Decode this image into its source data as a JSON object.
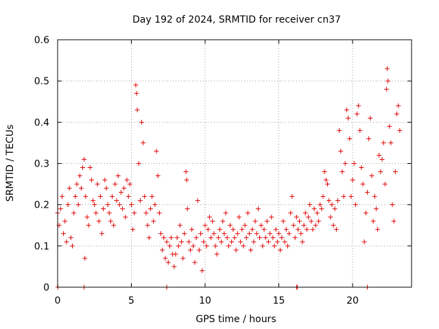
{
  "chart_data": {
    "type": "scatter",
    "title": "Day 192 of 2024, SRMTID for receiver cn37",
    "xlabel": "GPS time / hours",
    "ylabel": "SRMTID / TECUs",
    "xlim": [
      0,
      24
    ],
    "ylim": [
      0,
      0.6
    ],
    "xticks": [
      0,
      5,
      10,
      15,
      20
    ],
    "yticks": [
      0,
      0.1,
      0.2,
      0.3,
      0.4,
      0.5,
      0.6
    ],
    "xtick_labels": [
      "0",
      "5",
      "10",
      "15",
      "20"
    ],
    "ytick_labels": [
      "0",
      "0.1",
      "0.2",
      "0.3",
      "0.4",
      "0.5",
      "0.6"
    ],
    "grid": true,
    "marker": "+",
    "series": [
      {
        "name": "cn37",
        "color": "#e00000",
        "points": [
          [
            0.0,
            0.18
          ],
          [
            0.1,
            0.15
          ],
          [
            0.2,
            0.19
          ],
          [
            0.3,
            0.22
          ],
          [
            0.4,
            0.13
          ],
          [
            0.5,
            0.16
          ],
          [
            0.6,
            0.11
          ],
          [
            0.7,
            0.2
          ],
          [
            0.8,
            0.24
          ],
          [
            0.9,
            0.12
          ],
          [
            1.0,
            0.1
          ],
          [
            1.1,
            0.18
          ],
          [
            1.2,
            0.22
          ],
          [
            1.3,
            0.25
          ],
          [
            1.4,
            0.2
          ],
          [
            1.5,
            0.27
          ],
          [
            1.6,
            0.24
          ],
          [
            1.7,
            0.29
          ],
          [
            1.8,
            0.31
          ],
          [
            1.85,
            0.07
          ],
          [
            1.9,
            0.22
          ],
          [
            2.0,
            0.17
          ],
          [
            2.1,
            0.15
          ],
          [
            2.2,
            0.29
          ],
          [
            2.3,
            0.26
          ],
          [
            2.4,
            0.21
          ],
          [
            2.5,
            0.2
          ],
          [
            2.6,
            0.18
          ],
          [
            2.7,
            0.25
          ],
          [
            2.8,
            0.16
          ],
          [
            2.9,
            0.22
          ],
          [
            3.0,
            0.13
          ],
          [
            3.1,
            0.19
          ],
          [
            3.2,
            0.26
          ],
          [
            3.3,
            0.24
          ],
          [
            3.4,
            0.2
          ],
          [
            3.5,
            0.18
          ],
          [
            3.6,
            0.16
          ],
          [
            3.7,
            0.22
          ],
          [
            3.8,
            0.15
          ],
          [
            3.9,
            0.25
          ],
          [
            4.0,
            0.21
          ],
          [
            4.1,
            0.27
          ],
          [
            4.2,
            0.2
          ],
          [
            4.3,
            0.23
          ],
          [
            4.4,
            0.19
          ],
          [
            4.5,
            0.24
          ],
          [
            4.6,
            0.17
          ],
          [
            4.7,
            0.26
          ],
          [
            4.8,
            0.22
          ],
          [
            4.9,
            0.25
          ],
          [
            5.0,
            0.2
          ],
          [
            5.1,
            0.14
          ],
          [
            5.2,
            0.18
          ],
          [
            5.3,
            0.49
          ],
          [
            5.35,
            0.47
          ],
          [
            5.4,
            0.43
          ],
          [
            5.5,
            0.3
          ],
          [
            5.6,
            0.21
          ],
          [
            5.7,
            0.4
          ],
          [
            5.8,
            0.35
          ],
          [
            5.9,
            0.22
          ],
          [
            6.0,
            0.18
          ],
          [
            6.1,
            0.15
          ],
          [
            6.2,
            0.12
          ],
          [
            6.3,
            0.19
          ],
          [
            6.4,
            0.22
          ],
          [
            6.5,
            0.16
          ],
          [
            6.6,
            0.2
          ],
          [
            6.7,
            0.33
          ],
          [
            6.8,
            0.27
          ],
          [
            6.9,
            0.18
          ],
          [
            7.0,
            0.13
          ],
          [
            7.1,
            0.09
          ],
          [
            7.2,
            0.12
          ],
          [
            7.3,
            0.07
          ],
          [
            7.4,
            0.11
          ],
          [
            7.5,
            0.06
          ],
          [
            7.6,
            0.1
          ],
          [
            7.7,
            0.12
          ],
          [
            7.8,
            0.08
          ],
          [
            7.9,
            0.05
          ],
          [
            8.0,
            0.08
          ],
          [
            8.1,
            0.12
          ],
          [
            8.2,
            0.1
          ],
          [
            8.3,
            0.15
          ],
          [
            8.4,
            0.11
          ],
          [
            8.5,
            0.07
          ],
          [
            8.6,
            0.13
          ],
          [
            8.7,
            0.28
          ],
          [
            8.75,
            0.26
          ],
          [
            8.8,
            0.19
          ],
          [
            8.9,
            0.11
          ],
          [
            9.0,
            0.09
          ],
          [
            9.1,
            0.14
          ],
          [
            9.2,
            0.1
          ],
          [
            9.3,
            0.06
          ],
          [
            9.4,
            0.12
          ],
          [
            9.5,
            0.21
          ],
          [
            9.6,
            0.09
          ],
          [
            9.7,
            0.13
          ],
          [
            9.8,
            0.04
          ],
          [
            9.9,
            0.11
          ],
          [
            10.0,
            0.15
          ],
          [
            10.1,
            0.1
          ],
          [
            10.2,
            0.14
          ],
          [
            10.3,
            0.17
          ],
          [
            10.4,
            0.12
          ],
          [
            10.5,
            0.16
          ],
          [
            10.6,
            0.13
          ],
          [
            10.7,
            0.1
          ],
          [
            10.8,
            0.08
          ],
          [
            10.9,
            0.12
          ],
          [
            11.0,
            0.14
          ],
          [
            11.1,
            0.11
          ],
          [
            11.2,
            0.16
          ],
          [
            11.3,
            0.13
          ],
          [
            11.4,
            0.18
          ],
          [
            11.5,
            0.12
          ],
          [
            11.6,
            0.1
          ],
          [
            11.7,
            0.15
          ],
          [
            11.8,
            0.11
          ],
          [
            11.9,
            0.14
          ],
          [
            12.0,
            0.12
          ],
          [
            12.1,
            0.09
          ],
          [
            12.2,
            0.13
          ],
          [
            12.3,
            0.17
          ],
          [
            12.4,
            0.11
          ],
          [
            12.5,
            0.14
          ],
          [
            12.6,
            0.1
          ],
          [
            12.7,
            0.15
          ],
          [
            12.8,
            0.12
          ],
          [
            12.9,
            0.18
          ],
          [
            13.0,
            0.13
          ],
          [
            13.1,
            0.09
          ],
          [
            13.2,
            0.14
          ],
          [
            13.3,
            0.11
          ],
          [
            13.4,
            0.16
          ],
          [
            13.5,
            0.13
          ],
          [
            13.6,
            0.19
          ],
          [
            13.7,
            0.12
          ],
          [
            13.8,
            0.15
          ],
          [
            13.9,
            0.1
          ],
          [
            14.0,
            0.14
          ],
          [
            14.1,
            0.12
          ],
          [
            14.2,
            0.16
          ],
          [
            14.3,
            0.11
          ],
          [
            14.4,
            0.13
          ],
          [
            14.5,
            0.17
          ],
          [
            14.6,
            0.12
          ],
          [
            14.7,
            0.1
          ],
          [
            14.8,
            0.14
          ],
          [
            14.9,
            0.11
          ],
          [
            15.0,
            0.13
          ],
          [
            15.1,
            0.09
          ],
          [
            15.2,
            0.12
          ],
          [
            15.3,
            0.16
          ],
          [
            15.4,
            0.11
          ],
          [
            15.5,
            0.14
          ],
          [
            15.6,
            0.1
          ],
          [
            15.7,
            0.13
          ],
          [
            15.8,
            0.18
          ],
          [
            15.9,
            0.22
          ],
          [
            16.0,
            0.15
          ],
          [
            16.1,
            0.12
          ],
          [
            16.2,
            0.17
          ],
          [
            16.3,
            0.14
          ],
          [
            16.4,
            0.16
          ],
          [
            16.5,
            0.13
          ],
          [
            16.6,
            0.11
          ],
          [
            16.7,
            0.15
          ],
          [
            16.8,
            0.18
          ],
          [
            16.9,
            0.14
          ],
          [
            17.0,
            0.17
          ],
          [
            17.1,
            0.2
          ],
          [
            17.2,
            0.16
          ],
          [
            17.3,
            0.14
          ],
          [
            17.4,
            0.19
          ],
          [
            17.5,
            0.15
          ],
          [
            17.6,
            0.18
          ],
          [
            17.7,
            0.16
          ],
          [
            17.8,
            0.2
          ],
          [
            17.9,
            0.19
          ],
          [
            18.0,
            0.22
          ],
          [
            18.1,
            0.28
          ],
          [
            18.2,
            0.26
          ],
          [
            18.3,
            0.25
          ],
          [
            18.4,
            0.21
          ],
          [
            18.5,
            0.17
          ],
          [
            18.6,
            0.2
          ],
          [
            18.7,
            0.15
          ],
          [
            18.8,
            0.19
          ],
          [
            18.9,
            0.14
          ],
          [
            19.0,
            0.21
          ],
          [
            19.1,
            0.38
          ],
          [
            19.2,
            0.33
          ],
          [
            19.3,
            0.28
          ],
          [
            19.4,
            0.22
          ],
          [
            19.5,
            0.3
          ],
          [
            19.6,
            0.43
          ],
          [
            19.7,
            0.41
          ],
          [
            19.8,
            0.36
          ],
          [
            19.9,
            0.22
          ],
          [
            20.0,
            0.26
          ],
          [
            20.1,
            0.3
          ],
          [
            20.2,
            0.2
          ],
          [
            20.3,
            0.42
          ],
          [
            20.4,
            0.44
          ],
          [
            20.5,
            0.38
          ],
          [
            20.6,
            0.29
          ],
          [
            20.7,
            0.25
          ],
          [
            20.8,
            0.11
          ],
          [
            20.9,
            0.18
          ],
          [
            21.0,
            0.23
          ],
          [
            21.1,
            0.36
          ],
          [
            21.2,
            0.41
          ],
          [
            21.3,
            0.27
          ],
          [
            21.4,
            0.16
          ],
          [
            21.5,
            0.22
          ],
          [
            21.6,
            0.19
          ],
          [
            21.7,
            0.14
          ],
          [
            21.8,
            0.32
          ],
          [
            21.9,
            0.28
          ],
          [
            22.0,
            0.31
          ],
          [
            22.1,
            0.35
          ],
          [
            22.2,
            0.25
          ],
          [
            22.3,
            0.48
          ],
          [
            22.35,
            0.53
          ],
          [
            22.4,
            0.5
          ],
          [
            22.5,
            0.39
          ],
          [
            22.6,
            0.35
          ],
          [
            22.7,
            0.2
          ],
          [
            22.8,
            0.16
          ],
          [
            22.9,
            0.28
          ],
          [
            23.0,
            0.42
          ],
          [
            23.1,
            0.44
          ],
          [
            23.2,
            0.38
          ],
          [
            0.02,
            0.0
          ],
          [
            1.8,
            0.0
          ],
          [
            7.4,
            0.0
          ],
          [
            16.2,
            0.0
          ],
          [
            16.25,
            0.0
          ],
          [
            21.0,
            0.0
          ]
        ]
      }
    ]
  }
}
